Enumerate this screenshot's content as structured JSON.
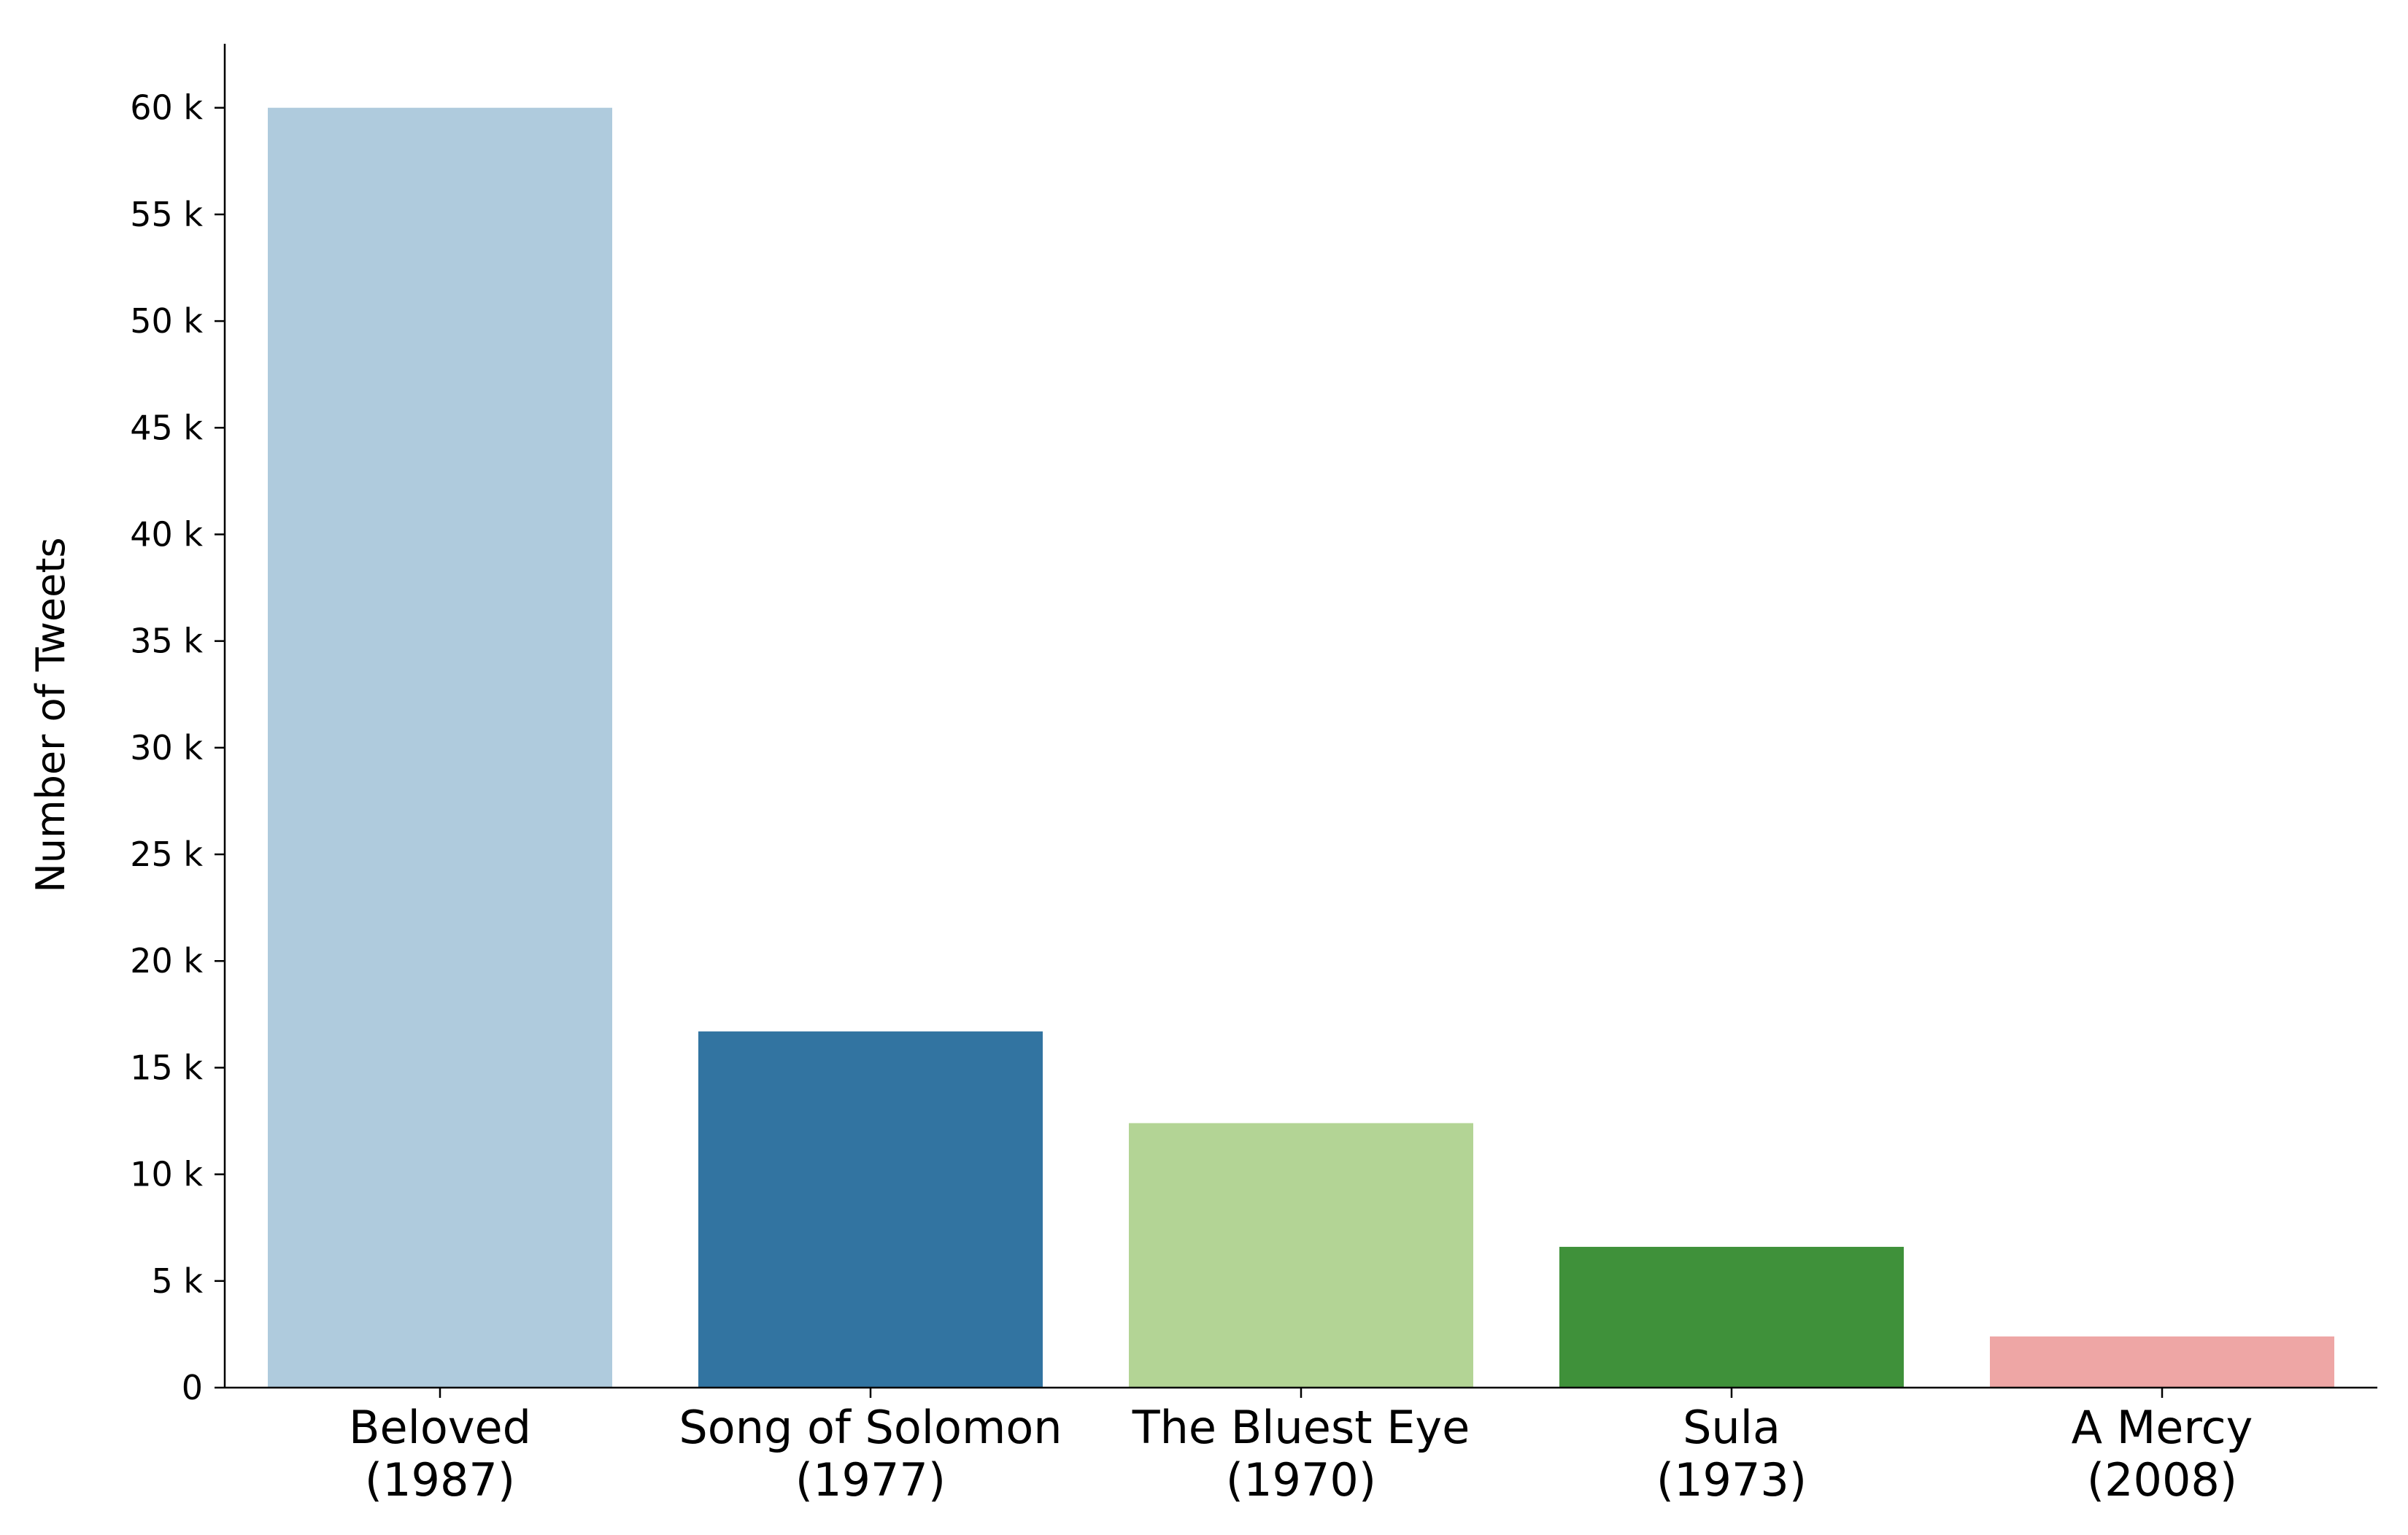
{
  "chart_data": {
    "type": "bar",
    "title": "",
    "xlabel": "",
    "ylabel": "Number of Tweets",
    "ylim": [
      0,
      63000
    ],
    "yticks": [
      0,
      5000,
      10000,
      15000,
      20000,
      25000,
      30000,
      35000,
      40000,
      45000,
      50000,
      55000,
      60000
    ],
    "ytick_labels": [
      "0",
      "5 k",
      "10 k",
      "15 k",
      "20 k",
      "25 k",
      "30 k",
      "35 k",
      "40 k",
      "45 k",
      "50 k",
      "55 k",
      "60 k"
    ],
    "categories": [
      "Beloved (1987)",
      "Song of Solomon (1977)",
      "The Bluest Eye (1970)",
      "Sula (1973)",
      "A Mercy (2008)"
    ],
    "category_lines": [
      [
        "Beloved",
        "(1987)"
      ],
      [
        "Song of Solomon",
        "(1977)"
      ],
      [
        "The Bluest Eye",
        "(1970)"
      ],
      [
        "Sula",
        "(1973)"
      ],
      [
        "A Mercy",
        "(2008)"
      ]
    ],
    "values": [
      60000,
      16700,
      12400,
      6600,
      2400
    ],
    "colors": [
      "#afcbdd",
      "#3274a1",
      "#b3d495",
      "#3f913a",
      "#eea6a5"
    ],
    "grid": false,
    "legend": "none"
  }
}
